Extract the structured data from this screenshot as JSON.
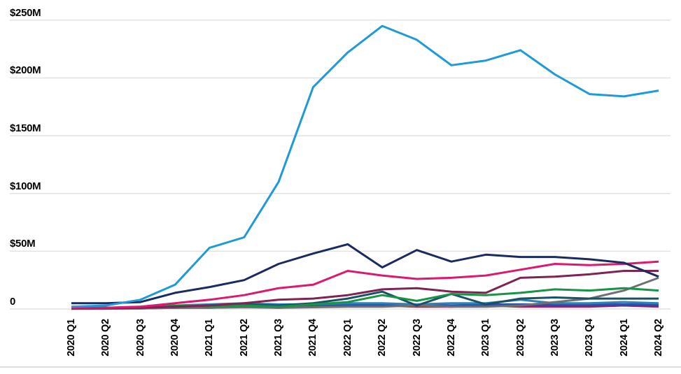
{
  "chart_data": {
    "type": "line",
    "title": "",
    "x_categories": [
      "2020 Q1",
      "2020 Q2",
      "2020 Q3",
      "2020 Q4",
      "2021 Q1",
      "2021 Q2",
      "2021 Q3",
      "2021 Q4",
      "2022 Q1",
      "2022 Q2",
      "2022 Q3",
      "2022 Q4",
      "2023 Q1",
      "2023 Q2",
      "2023 Q3",
      "2023 Q4",
      "2024 Q1",
      "2024 Q2"
    ],
    "y_ticks": [
      "$250M",
      "$200M",
      "$150M",
      "$100M",
      "$50M",
      "0"
    ],
    "y_tick_values": [
      250,
      200,
      150,
      100,
      50,
      0
    ],
    "ylim": [
      0,
      250
    ],
    "y_unit": "$M",
    "grid": true,
    "legend": "none",
    "colors": {
      "grid_line": "#E2E2E2",
      "bottom_rule": "#DDDDDD",
      "axis_text": "#000000"
    },
    "series": [
      {
        "name": "series-crimson",
        "color": "#C2185B",
        "values": [
          0.2,
          0.3,
          0.5,
          1,
          1,
          2,
          1,
          2,
          4,
          3,
          2,
          2,
          3,
          2,
          2,
          2,
          3,
          2
        ]
      },
      {
        "name": "series-purple",
        "color": "#5C2D9E",
        "values": [
          0.3,
          0.5,
          1,
          1,
          1.5,
          2,
          2,
          2,
          3,
          3,
          3,
          3,
          3,
          3,
          3,
          3,
          3,
          3
        ]
      },
      {
        "name": "series-royal-blue",
        "color": "#2C50A5",
        "values": [
          0.5,
          1,
          1,
          2,
          2,
          3,
          2,
          3,
          3,
          4,
          3,
          3,
          4,
          4,
          4,
          4,
          4,
          4
        ]
      },
      {
        "name": "series-steel-blue",
        "color": "#2E80B8",
        "values": [
          1,
          1,
          2,
          3,
          4,
          5,
          4,
          4,
          5,
          5,
          4,
          5,
          5,
          8,
          5,
          5,
          6,
          5
        ]
      },
      {
        "name": "series-gray",
        "color": "#6E7072",
        "values": [
          0.3,
          0.3,
          0.5,
          1,
          1,
          1.5,
          1,
          1.5,
          2,
          2,
          3,
          2,
          2,
          3,
          6,
          9,
          16,
          27
        ]
      },
      {
        "name": "series-teal",
        "color": "#185263",
        "values": [
          1,
          1,
          1,
          2,
          3,
          4,
          3,
          5,
          9,
          15,
          3,
          13,
          4,
          9,
          10,
          9,
          9,
          9
        ]
      },
      {
        "name": "series-green",
        "color": "#189447",
        "values": [
          0.5,
          1,
          1,
          3,
          2,
          3,
          2,
          4,
          6,
          12,
          7,
          13,
          12,
          14,
          17,
          16,
          18,
          16
        ]
      },
      {
        "name": "series-maroon",
        "color": "#7F2452",
        "values": [
          0.5,
          0.5,
          1,
          2,
          3,
          5,
          8,
          9,
          12,
          17,
          18,
          15,
          14,
          27,
          28,
          30,
          33,
          33
        ]
      },
      {
        "name": "series-pink",
        "color": "#DB1A6F",
        "values": [
          1,
          1,
          2,
          5,
          8,
          12,
          18,
          21,
          33,
          29,
          26,
          27,
          29,
          34,
          39,
          38,
          39,
          41
        ]
      },
      {
        "name": "series-navy",
        "color": "#192B61",
        "values": [
          5,
          5,
          6,
          14,
          19,
          25,
          39,
          48,
          56,
          36,
          51,
          41,
          47,
          45,
          45,
          43,
          40,
          28
        ]
      },
      {
        "name": "series-cyan",
        "color": "#1E9BD7",
        "values": [
          2,
          3,
          8,
          21,
          53,
          62,
          110,
          192,
          222,
          245,
          233,
          211,
          215,
          224,
          203,
          186,
          184,
          189
        ]
      }
    ]
  }
}
